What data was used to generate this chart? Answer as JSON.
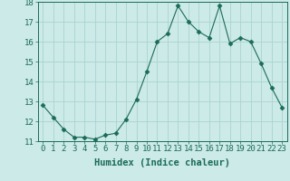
{
  "x": [
    0,
    1,
    2,
    3,
    4,
    5,
    6,
    7,
    8,
    9,
    10,
    11,
    12,
    13,
    14,
    15,
    16,
    17,
    18,
    19,
    20,
    21,
    22,
    23
  ],
  "y": [
    12.8,
    12.2,
    11.6,
    11.2,
    11.2,
    11.1,
    11.3,
    11.4,
    12.1,
    13.1,
    14.5,
    16.0,
    16.4,
    17.8,
    17.0,
    16.5,
    16.2,
    17.8,
    15.9,
    16.2,
    16.0,
    14.9,
    13.7,
    12.7
  ],
  "line_color": "#1a6b5a",
  "marker": "D",
  "marker_size": 2.5,
  "bg_color": "#cceae7",
  "grid_color": "#aad4d0",
  "xlabel": "Humidex (Indice chaleur)",
  "xlim": [
    -0.5,
    23.5
  ],
  "ylim": [
    11,
    18
  ],
  "yticks": [
    11,
    12,
    13,
    14,
    15,
    16,
    17,
    18
  ],
  "xticks": [
    0,
    1,
    2,
    3,
    4,
    5,
    6,
    7,
    8,
    9,
    10,
    11,
    12,
    13,
    14,
    15,
    16,
    17,
    18,
    19,
    20,
    21,
    22,
    23
  ],
  "xlabel_fontsize": 7.5,
  "tick_fontsize": 6.5
}
